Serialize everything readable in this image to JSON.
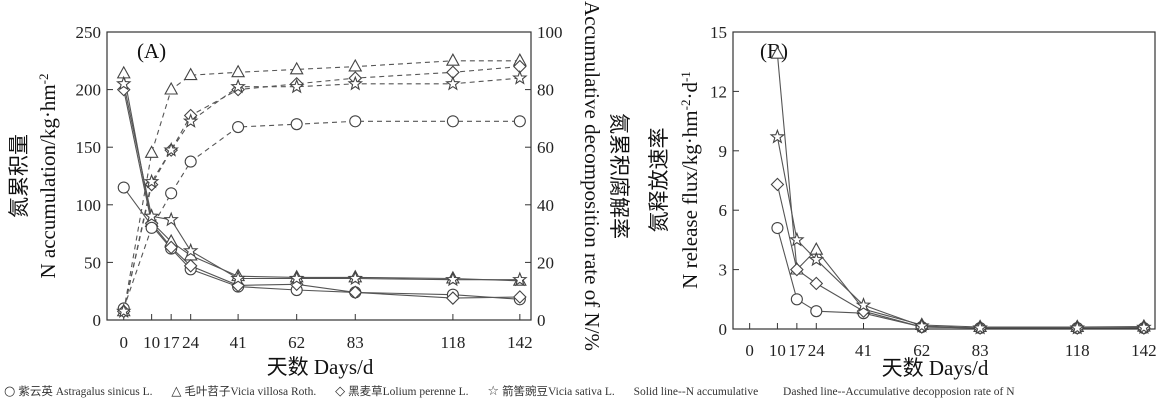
{
  "chart_data": [
    {
      "panel_label": "(A)",
      "type": "line",
      "xlabel": "天数 Days/d",
      "ylabel_left_cn": "氮累积量",
      "ylabel_left_en": "N accumulation/kg·hm",
      "ylabel_left_sup": "-2",
      "ylabel_right_cn": "氮累积腐解率",
      "ylabel_right_en": "Accumulative decomposition rate of N/%",
      "xtick_labels": [
        "0",
        "10",
        "17",
        "24",
        "41",
        "62",
        "83",
        "118",
        "142"
      ],
      "x": [
        0,
        10,
        17,
        24,
        41,
        62,
        83,
        118,
        142
      ],
      "ylim_left": [
        0,
        250
      ],
      "yticks_left": [
        0,
        50,
        100,
        150,
        200,
        250
      ],
      "ylim_right": [
        0,
        100
      ],
      "yticks_right": [
        0,
        20,
        40,
        60,
        80,
        100
      ],
      "series_accumulation": [
        {
          "marker": "circle",
          "values": [
            115,
            82,
            62,
            44,
            29,
            26,
            24,
            22,
            18
          ]
        },
        {
          "marker": "triangle",
          "values": [
            214,
            85,
            68,
            56,
            38,
            37,
            37,
            36,
            34
          ]
        },
        {
          "marker": "diamond",
          "values": [
            200,
            84,
            63,
            47,
            30,
            31,
            24,
            19,
            20
          ]
        },
        {
          "marker": "star",
          "values": [
            205,
            90,
            87,
            60,
            36,
            36,
            36,
            35,
            35
          ]
        }
      ],
      "series_decomposition": [
        {
          "marker": "circle",
          "values": [
            4,
            32,
            44,
            55,
            67,
            68,
            69,
            69,
            69
          ]
        },
        {
          "marker": "triangle",
          "values": [
            3,
            58,
            80,
            85,
            86,
            87,
            88,
            90,
            90
          ]
        },
        {
          "marker": "diamond",
          "values": [
            3,
            47,
            59,
            71,
            80,
            82,
            84,
            86,
            88
          ]
        },
        {
          "marker": "star",
          "values": [
            3,
            48,
            59,
            69,
            81,
            81,
            82,
            82,
            84
          ]
        }
      ]
    },
    {
      "panel_label": "(B)",
      "type": "line",
      "xlabel": "天数 Days/d",
      "ylabel_cn": "氮释放速率",
      "ylabel_en": "N release flux/kg·hm",
      "ylabel_sup1": "-2",
      "ylabel_mid": "·d",
      "ylabel_sup2": "-1",
      "xtick_labels": [
        "0",
        "10",
        "17",
        "24",
        "41",
        "62",
        "83",
        "118",
        "142"
      ],
      "x_ticks": [
        0,
        10,
        17,
        24,
        41,
        62,
        83,
        118,
        142
      ],
      "x": [
        10,
        17,
        24,
        41,
        62,
        83,
        118,
        142
      ],
      "ylim": [
        0,
        15
      ],
      "yticks": [
        0,
        3,
        6,
        9,
        12,
        15
      ],
      "series": [
        {
          "marker": "circle",
          "values": [
            5.1,
            1.5,
            0.9,
            0.8,
            0.1,
            0.05,
            0.05,
            0.05
          ]
        },
        {
          "marker": "triangle",
          "values": [
            13.9,
            3.0,
            4.0,
            1.0,
            0.2,
            0.1,
            0.1,
            0.12
          ]
        },
        {
          "marker": "diamond",
          "values": [
            7.3,
            3.0,
            2.3,
            0.9,
            0.1,
            0.05,
            0.05,
            0.05
          ]
        },
        {
          "marker": "star",
          "values": [
            9.7,
            4.5,
            3.5,
            1.2,
            0.15,
            0.05,
            0.05,
            0.08
          ]
        }
      ]
    }
  ],
  "legend": {
    "items": [
      {
        "symbol": "○",
        "text": "紫云英 Astragalus sinicus L."
      },
      {
        "symbol": "△",
        "text": "毛叶苕子Vicia villosa Roth."
      },
      {
        "symbol": "◇",
        "text": "黑麦草Lolium perenne L."
      },
      {
        "symbol": "☆",
        "text": "箭筈豌豆Vicia sativa L."
      }
    ],
    "solid_note": "Solid line--N accumulative",
    "dashed_note": "Dashed line--Accumulative decopposion rate of N"
  },
  "colors": {
    "line": "#555555",
    "axis": "#333333",
    "marker_fill": "#ffffff"
  }
}
